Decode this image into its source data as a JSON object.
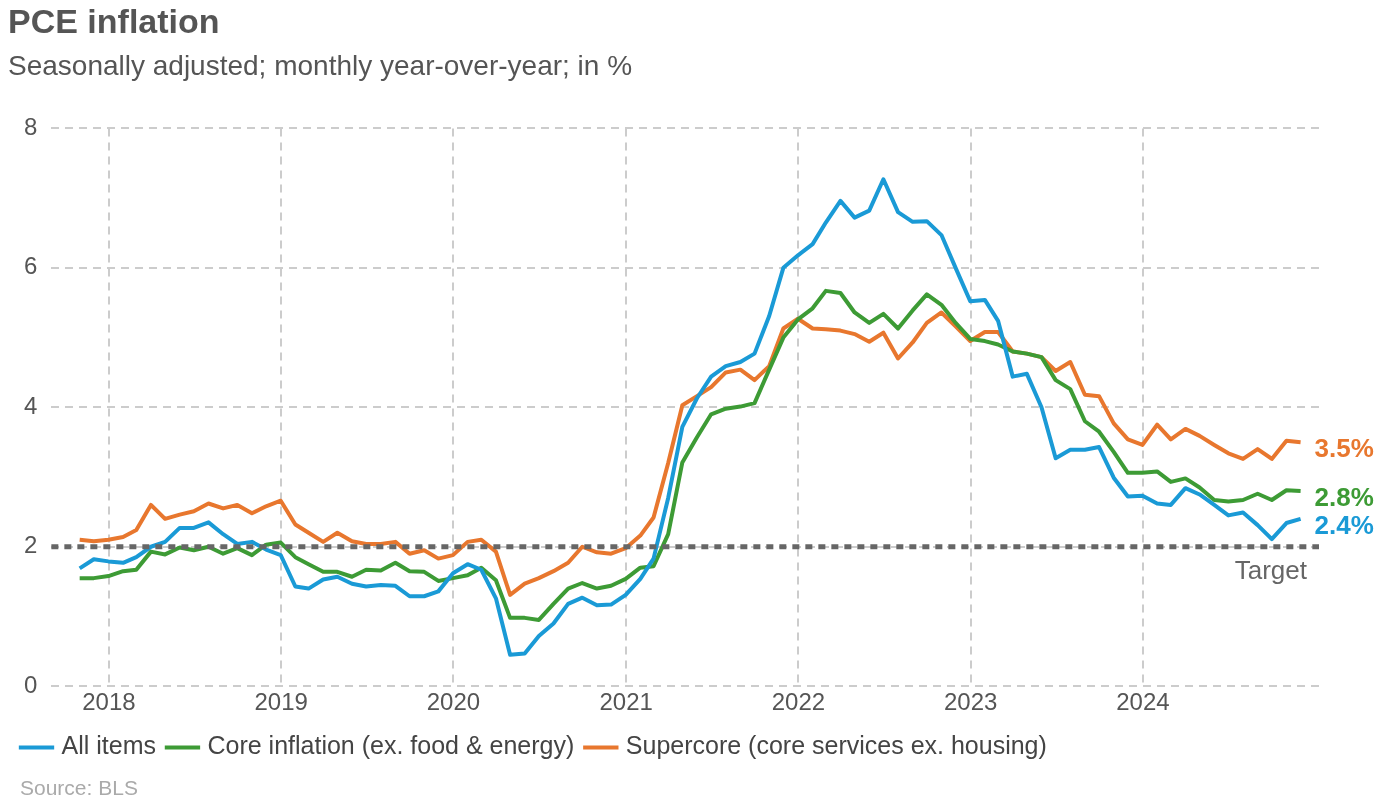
{
  "chart_data": {
    "type": "line",
    "title": "PCE inflation",
    "subtitle": "Seasonally adjusted; monthly year-over-year; in %",
    "x": [
      "2017-10-31",
      "2017-11-30",
      "2017-12-31",
      "2018-01-31",
      "2018-02-28",
      "2018-03-31",
      "2018-04-30",
      "2018-05-31",
      "2018-06-30",
      "2018-07-31",
      "2018-08-31",
      "2018-09-30",
      "2018-10-31",
      "2018-11-30",
      "2018-12-31",
      "2019-01-31",
      "2019-02-28",
      "2019-03-31",
      "2019-04-30",
      "2019-05-31",
      "2019-06-30",
      "2019-07-31",
      "2019-08-31",
      "2019-09-30",
      "2019-10-31",
      "2019-11-30",
      "2019-12-31",
      "2020-01-31",
      "2020-02-29",
      "2020-03-31",
      "2020-04-30",
      "2020-05-31",
      "2020-06-30",
      "2020-07-31",
      "2020-08-31",
      "2020-09-30",
      "2020-10-31",
      "2020-11-30",
      "2020-12-31",
      "2021-01-31",
      "2021-02-28",
      "2021-03-31",
      "2021-04-30",
      "2021-05-31",
      "2021-06-30",
      "2021-07-31",
      "2021-08-31",
      "2021-09-30",
      "2021-10-31",
      "2021-11-30",
      "2021-12-31",
      "2022-01-31",
      "2022-02-28",
      "2022-03-31",
      "2022-04-30",
      "2022-05-31",
      "2022-06-30",
      "2022-07-31",
      "2022-08-31",
      "2022-09-30",
      "2022-10-31",
      "2022-11-30",
      "2022-12-31",
      "2023-01-31",
      "2023-02-28",
      "2023-03-31",
      "2023-04-30",
      "2023-05-31",
      "2023-06-30",
      "2023-07-31",
      "2023-08-31",
      "2023-09-30",
      "2023-10-31",
      "2023-11-30",
      "2023-12-31",
      "2024-01-31",
      "2024-02-29",
      "2024-03-31",
      "2024-04-30",
      "2024-05-31",
      "2024-06-30",
      "2024-07-31",
      "2024-08-31",
      "2024-09-30",
      "2024-10-31",
      "2024-11-30"
    ],
    "series": [
      {
        "name": "All items",
        "color": "#1a9ad6",
        "values": [
          1.69,
          1.82,
          1.79,
          1.77,
          1.85,
          2.0,
          2.07,
          2.27,
          2.27,
          2.35,
          2.18,
          2.04,
          2.07,
          1.96,
          1.88,
          1.43,
          1.4,
          1.53,
          1.57,
          1.47,
          1.43,
          1.45,
          1.44,
          1.29,
          1.29,
          1.36,
          1.62,
          1.75,
          1.67,
          1.26,
          0.45,
          0.47,
          0.72,
          0.9,
          1.18,
          1.27,
          1.16,
          1.17,
          1.31,
          1.54,
          1.83,
          2.7,
          3.72,
          4.13,
          4.44,
          4.59,
          4.65,
          4.77,
          5.31,
          6.0,
          6.18,
          6.34,
          6.65,
          6.96,
          6.72,
          6.82,
          7.27,
          6.8,
          6.66,
          6.67,
          6.47,
          6.0,
          5.52,
          5.54,
          5.24,
          4.44,
          4.48,
          4.0,
          3.27,
          3.39,
          3.39,
          3.43,
          2.99,
          2.72,
          2.73,
          2.62,
          2.6,
          2.84,
          2.75,
          2.6,
          2.45,
          2.49,
          2.31,
          2.11,
          2.34,
          2.4
        ],
        "value_labels": [
          null,
          null,
          null,
          null,
          null,
          null,
          null,
          null,
          null,
          null,
          null,
          null,
          null,
          null,
          null,
          null,
          null,
          null,
          null,
          null,
          null,
          null,
          null,
          null,
          null,
          null,
          null,
          null,
          null,
          null,
          null,
          null,
          null,
          null,
          null,
          null,
          null,
          null,
          null,
          null,
          null,
          null,
          null,
          null,
          null,
          null,
          null,
          null,
          null,
          null,
          null,
          null,
          null,
          null,
          null,
          null,
          null,
          null,
          null,
          null,
          null,
          null,
          null,
          null,
          null,
          null,
          null,
          null,
          null,
          null,
          null,
          null,
          null,
          null,
          null,
          null,
          null,
          null,
          null,
          null,
          null,
          null,
          null,
          null,
          null,
          "2.4%"
        ]
      },
      {
        "name": "Core inflation (ex. food & energy)",
        "color": "#3d9b35",
        "values": [
          1.55,
          1.55,
          1.58,
          1.65,
          1.67,
          1.93,
          1.89,
          1.99,
          1.95,
          2.0,
          1.9,
          1.98,
          1.88,
          2.03,
          2.06,
          1.85,
          1.75,
          1.64,
          1.64,
          1.57,
          1.67,
          1.66,
          1.77,
          1.65,
          1.64,
          1.51,
          1.55,
          1.59,
          1.7,
          1.52,
          0.98,
          0.98,
          0.95,
          1.18,
          1.4,
          1.48,
          1.4,
          1.44,
          1.54,
          1.7,
          1.72,
          2.18,
          3.21,
          3.57,
          3.9,
          3.98,
          4.01,
          4.06,
          4.54,
          5.0,
          5.26,
          5.42,
          5.67,
          5.64,
          5.36,
          5.21,
          5.34,
          5.13,
          5.39,
          5.62,
          5.47,
          5.21,
          4.98,
          4.95,
          4.9,
          4.8,
          4.77,
          4.72,
          4.39,
          4.26,
          3.8,
          3.65,
          3.36,
          3.06,
          3.06,
          3.08,
          2.93,
          2.98,
          2.85,
          2.67,
          2.65,
          2.67,
          2.76,
          2.67,
          2.81,
          2.8
        ],
        "value_labels": [
          null,
          null,
          null,
          null,
          null,
          null,
          null,
          null,
          null,
          null,
          null,
          null,
          null,
          null,
          null,
          null,
          null,
          null,
          null,
          null,
          null,
          null,
          null,
          null,
          null,
          null,
          null,
          null,
          null,
          null,
          null,
          null,
          null,
          null,
          null,
          null,
          null,
          null,
          null,
          null,
          null,
          null,
          null,
          null,
          null,
          null,
          null,
          null,
          null,
          null,
          null,
          null,
          null,
          null,
          null,
          null,
          null,
          null,
          null,
          null,
          null,
          null,
          null,
          null,
          null,
          null,
          null,
          null,
          null,
          null,
          null,
          null,
          null,
          null,
          null,
          null,
          null,
          null,
          null,
          null,
          null,
          null,
          null,
          null,
          null,
          "2.8%"
        ]
      },
      {
        "name": "Supercore (core services ex. housing)",
        "color": "#e8772e",
        "values": [
          2.1,
          2.08,
          2.1,
          2.14,
          2.24,
          2.6,
          2.4,
          2.46,
          2.51,
          2.62,
          2.55,
          2.6,
          2.48,
          2.58,
          2.66,
          2.32,
          2.2,
          2.07,
          2.2,
          2.08,
          2.04,
          2.04,
          2.07,
          1.9,
          1.95,
          1.83,
          1.88,
          2.07,
          2.1,
          1.93,
          1.31,
          1.47,
          1.55,
          1.65,
          1.77,
          2.0,
          1.92,
          1.9,
          1.98,
          2.16,
          2.42,
          3.2,
          4.03,
          4.16,
          4.29,
          4.5,
          4.54,
          4.39,
          4.59,
          5.13,
          5.27,
          5.13,
          5.12,
          5.1,
          5.05,
          4.94,
          5.07,
          4.7,
          4.93,
          5.21,
          5.36,
          5.16,
          4.95,
          5.08,
          5.08,
          4.8,
          4.77,
          4.72,
          4.52,
          4.65,
          4.18,
          4.16,
          3.77,
          3.54,
          3.46,
          3.75,
          3.54,
          3.69,
          3.59,
          3.46,
          3.34,
          3.26,
          3.4,
          3.26,
          3.52,
          3.5
        ],
        "value_labels": [
          null,
          null,
          null,
          null,
          null,
          null,
          null,
          null,
          null,
          null,
          null,
          null,
          null,
          null,
          null,
          null,
          null,
          null,
          null,
          null,
          null,
          null,
          null,
          null,
          null,
          null,
          null,
          null,
          null,
          null,
          null,
          null,
          null,
          null,
          null,
          null,
          null,
          null,
          null,
          null,
          null,
          null,
          null,
          null,
          null,
          null,
          null,
          null,
          null,
          null,
          null,
          null,
          null,
          null,
          null,
          null,
          null,
          null,
          null,
          null,
          null,
          null,
          null,
          null,
          null,
          null,
          null,
          null,
          null,
          null,
          null,
          null,
          null,
          null,
          null,
          null,
          null,
          null,
          null,
          null,
          null,
          null,
          null,
          null,
          null,
          "3.5%"
        ]
      }
    ],
    "xlim": [
      "2017-09-01",
      "2025-01-08"
    ],
    "xticks": [
      {
        "value": "2018",
        "label": "2018"
      },
      {
        "value": "2019",
        "label": "2019"
      },
      {
        "value": "2020",
        "label": "2020"
      },
      {
        "value": "2021",
        "label": "2021"
      },
      {
        "value": "2022",
        "label": "2022"
      },
      {
        "value": "2023",
        "label": "2023"
      },
      {
        "value": "2024",
        "label": "2024"
      }
    ],
    "ylim": [
      0,
      8
    ],
    "yticks": [
      0,
      2,
      4,
      6,
      8
    ],
    "ref_lines": [
      {
        "axis": "y",
        "value": 2,
        "label": "Target",
        "color": "#666666",
        "line_style": "dotted"
      }
    ],
    "grid": true,
    "legend": "bottom",
    "marker": "none",
    "line_style": "solid",
    "annotations": [
      "Source: BLS"
    ]
  }
}
